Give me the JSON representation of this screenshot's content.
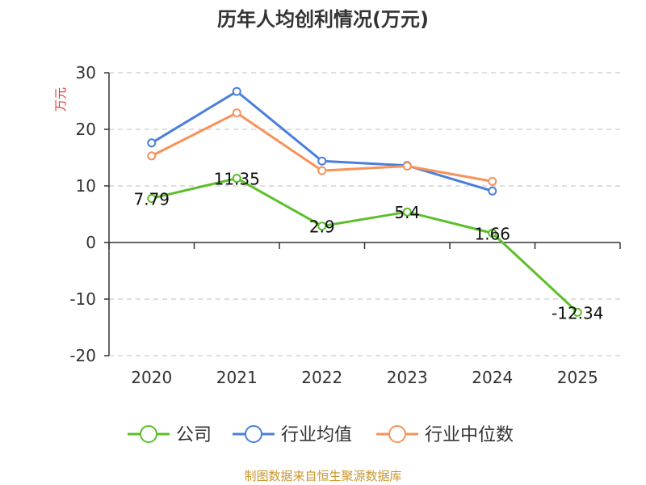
{
  "chart_data": {
    "type": "line",
    "title": "历年人均创利情况(万元)",
    "ylabel": "万元",
    "xlabel": "",
    "categories": [
      "2020",
      "2021",
      "2022",
      "2023",
      "2024",
      "2025"
    ],
    "ylim": [
      -20,
      30
    ],
    "yticks": [
      30,
      20,
      10,
      0,
      -10,
      -20
    ],
    "grid": true,
    "legend_position": "bottom",
    "series": [
      {
        "name": "公司",
        "color": "#5cbf2a",
        "values": [
          7.79,
          11.35,
          2.9,
          5.4,
          1.66,
          -12.34
        ],
        "labels": [
          "7.79",
          "11.35",
          "2.9",
          "5.4",
          "1.66",
          "-12.34"
        ]
      },
      {
        "name": "行业均值",
        "color": "#4a7fdc",
        "values": [
          17.6,
          26.7,
          14.4,
          13.6,
          9.1,
          null
        ]
      },
      {
        "name": "行业中位数",
        "color": "#f7925a",
        "values": [
          15.3,
          22.9,
          12.7,
          13.5,
          10.8,
          null
        ]
      }
    ]
  },
  "footer": {
    "source": "制图数据来自恒生聚源数据库"
  }
}
